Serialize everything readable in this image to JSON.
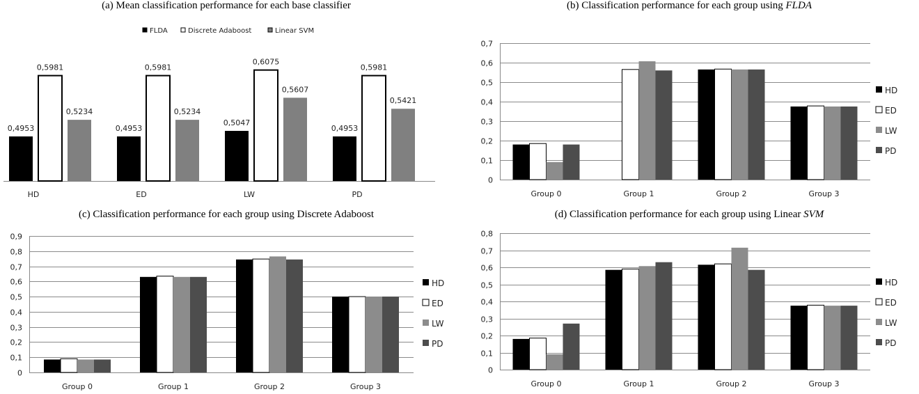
{
  "chart_data": [
    {
      "id": "a",
      "type": "bar",
      "title_prefix": "(a) ",
      "title": "Mean classification performance for each base classifier",
      "title_italic": "",
      "categories": [
        "HD",
        "ED",
        "LW",
        "PD"
      ],
      "series": [
        {
          "name": "FLDA",
          "values": [
            0.4953,
            0.4953,
            0.5047,
            0.4953
          ],
          "labels": [
            "0,4953",
            "0,4953",
            "0,5047",
            "0,4953"
          ]
        },
        {
          "name": "Discrete Adaboost",
          "values": [
            0.5981,
            0.5981,
            0.6075,
            0.5981
          ],
          "labels": [
            "0,5981",
            "0,5981",
            "0,6075",
            "0,5981"
          ]
        },
        {
          "name": "Linear SVM",
          "values": [
            0.5234,
            0.5234,
            0.5607,
            0.5421
          ],
          "labels": [
            "0,5234",
            "0,5234",
            "0,5607",
            "0,5421"
          ]
        }
      ],
      "ylim": [
        0.42,
        0.62
      ],
      "grid": false,
      "show_y_axis": false,
      "legend_position": "top"
    },
    {
      "id": "b",
      "type": "bar",
      "title_prefix": "(b) ",
      "title": "Classification performance for each group using ",
      "title_italic": "FLDA",
      "categories": [
        "Group 0",
        "Group 1",
        "Group 2",
        "Group 3"
      ],
      "series": [
        {
          "name": "HD",
          "values": [
            0.18,
            0.0,
            0.565,
            0.375
          ]
        },
        {
          "name": "ED",
          "values": [
            0.185,
            0.565,
            0.567,
            0.378
          ]
        },
        {
          "name": "LW",
          "values": [
            0.09,
            0.607,
            0.565,
            0.375
          ]
        },
        {
          "name": "PD",
          "values": [
            0.18,
            0.56,
            0.565,
            0.375
          ]
        }
      ],
      "ylim": [
        0,
        0.7
      ],
      "yticks": [
        "0",
        "0,1",
        "0,2",
        "0,3",
        "0,4",
        "0,5",
        "0,6",
        "0,7"
      ],
      "grid": true,
      "legend_position": "right"
    },
    {
      "id": "c",
      "type": "bar",
      "title_prefix": "(c) ",
      "title": "Classification performance for each group using Discrete Adaboost",
      "title_italic": "",
      "categories": [
        "Group 0",
        "Group 1",
        "Group 2",
        "Group 3"
      ],
      "series": [
        {
          "name": "HD",
          "values": [
            0.085,
            0.63,
            0.745,
            0.5
          ]
        },
        {
          "name": "ED",
          "values": [
            0.09,
            0.635,
            0.748,
            0.5
          ]
        },
        {
          "name": "LW",
          "values": [
            0.085,
            0.63,
            0.765,
            0.5
          ]
        },
        {
          "name": "PD",
          "values": [
            0.085,
            0.63,
            0.745,
            0.5
          ]
        }
      ],
      "ylim": [
        0,
        0.9
      ],
      "yticks": [
        "0",
        "0,1",
        "0,2",
        "0,3",
        "0,4",
        "0,5",
        "0,6",
        "0,7",
        "0,8",
        "0,9"
      ],
      "grid": true,
      "legend_position": "right"
    },
    {
      "id": "d",
      "type": "bar",
      "title_prefix": "(d) ",
      "title": "Classification performance for each group using Linear ",
      "title_italic": "SVM",
      "categories": [
        "Group 0",
        "Group 1",
        "Group 2",
        "Group 3"
      ],
      "series": [
        {
          "name": "HD",
          "values": [
            0.18,
            0.585,
            0.615,
            0.375
          ]
        },
        {
          "name": "ED",
          "values": [
            0.185,
            0.59,
            0.62,
            0.378
          ]
        },
        {
          "name": "LW",
          "values": [
            0.09,
            0.607,
            0.715,
            0.375
          ]
        },
        {
          "name": "PD",
          "values": [
            0.27,
            0.63,
            0.585,
            0.375
          ]
        }
      ],
      "ylim": [
        0,
        0.8
      ],
      "yticks": [
        "0",
        "0,1",
        "0,2",
        "0,3",
        "0,4",
        "0,5",
        "0,6",
        "0,7",
        "0,8"
      ],
      "grid": true,
      "legend_position": "right"
    }
  ],
  "colors": {
    "series_a": [
      "#000000",
      "#ffffff",
      "#808080"
    ],
    "series_group": [
      "#000000",
      "#ffffff",
      "#8c8c8c",
      "#4d4d4d"
    ],
    "grid": "#8a8a8a",
    "axis": "#888888"
  }
}
